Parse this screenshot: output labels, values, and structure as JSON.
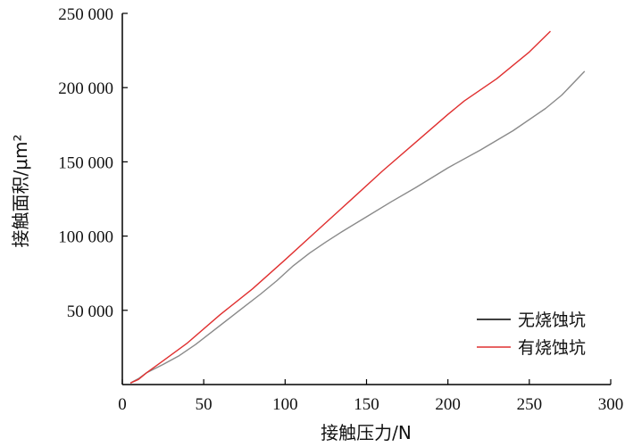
{
  "chart_data": {
    "type": "line",
    "xlabel": "接触压力/N",
    "ylabel": "接触面积/μm²",
    "xlim": [
      0,
      300
    ],
    "ylim": [
      0,
      250000
    ],
    "x_ticks": [
      0,
      50,
      100,
      150,
      200,
      250,
      300
    ],
    "x_tick_labels": [
      "0",
      "50",
      "100",
      "150",
      "200",
      "250",
      "300"
    ],
    "y_ticks": [
      50000,
      100000,
      150000,
      200000,
      250000
    ],
    "y_tick_labels": [
      "50 000",
      "100 000",
      "150 000",
      "200 000",
      "250 000"
    ],
    "grid": false,
    "legend_position": "bottom-right",
    "series": [
      {
        "name": "无烧蚀坑",
        "color": "#8a8a8a",
        "legend_color": "#000000",
        "points": [
          [
            5,
            1000
          ],
          [
            10,
            4000
          ],
          [
            15,
            8000
          ],
          [
            25,
            13500
          ],
          [
            35,
            19500
          ],
          [
            45,
            27000
          ],
          [
            55,
            35500
          ],
          [
            65,
            44000
          ],
          [
            75,
            52500
          ],
          [
            85,
            61000
          ],
          [
            95,
            70000
          ],
          [
            105,
            80000
          ],
          [
            115,
            88500
          ],
          [
            125,
            96000
          ],
          [
            135,
            103000
          ],
          [
            150,
            113000
          ],
          [
            165,
            123000
          ],
          [
            180,
            132500
          ],
          [
            200,
            146000
          ],
          [
            220,
            158000
          ],
          [
            240,
            171000
          ],
          [
            260,
            186000
          ],
          [
            270,
            195000
          ],
          [
            284,
            211000
          ]
        ]
      },
      {
        "name": "有烧蚀坑",
        "color": "#e03030",
        "legend_color": "#e03030",
        "points": [
          [
            5,
            1000
          ],
          [
            10,
            3500
          ],
          [
            15,
            8000
          ],
          [
            25,
            16000
          ],
          [
            40,
            28000
          ],
          [
            60,
            47000
          ],
          [
            80,
            64500
          ],
          [
            100,
            84000
          ],
          [
            120,
            104000
          ],
          [
            140,
            124000
          ],
          [
            160,
            144000
          ],
          [
            180,
            163000
          ],
          [
            200,
            182000
          ],
          [
            210,
            191000
          ],
          [
            230,
            206000
          ],
          [
            250,
            224000
          ],
          [
            263,
            238000
          ]
        ]
      }
    ]
  }
}
